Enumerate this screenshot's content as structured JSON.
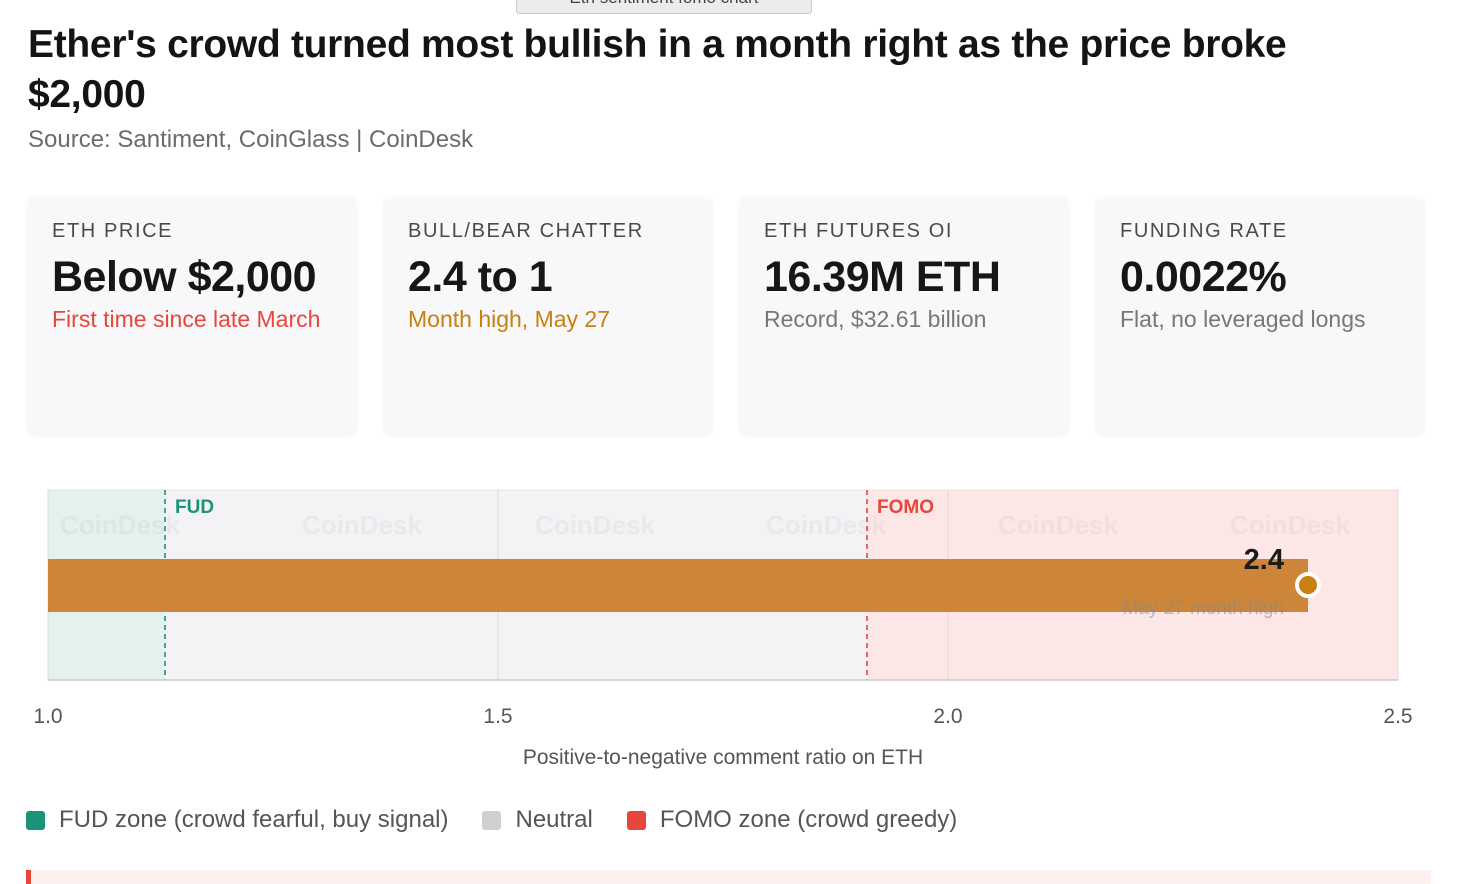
{
  "overlay_tab": "Eth sentiment fomo chart",
  "title": "Ether's crowd turned most bullish in a month right as the price broke $2,000",
  "subtitle": "Source: Santiment, CoinGlass | CoinDesk",
  "cards": [
    {
      "label": "ETH PRICE",
      "value": "Below $2,000",
      "note": "First time since late March",
      "note_color": "#e8463c"
    },
    {
      "label": "BULL/BEAR CHATTER",
      "value": "2.4 to 1",
      "note": "Month high, May 27",
      "note_color": "#c8810f"
    },
    {
      "label": "ETH FUTURES OI",
      "value": "16.39M ETH",
      "note": "Record, $32.61 billion",
      "note_color": "#777777"
    },
    {
      "label": "FUNDING RATE",
      "value": "0.0022%",
      "note": "Flat, no leveraged longs",
      "note_color": "#777777"
    }
  ],
  "chart_data": {
    "type": "bar",
    "orientation": "horizontal",
    "xlabel": "Positive-to-negative comment ratio on ETH",
    "xlim": [
      1.0,
      2.5
    ],
    "xticks": [
      "1.0",
      "1.5",
      "2.0",
      "2.5"
    ],
    "grid": true,
    "watermark": "CoinDesk",
    "zones": [
      {
        "name": "FUD",
        "from": 1.0,
        "to": 1.13,
        "color": "#1a9479"
      },
      {
        "name": "Neutral",
        "from": 1.13,
        "to": 1.91,
        "color": "#cfcfcf"
      },
      {
        "name": "FOMO",
        "from": 1.91,
        "to": 2.5,
        "color": "#e8463c"
      }
    ],
    "thresholds": [
      {
        "label": "FUD",
        "value": 1.13,
        "color": "#1a9479"
      },
      {
        "label": "FOMO",
        "value": 1.91,
        "color": "#e8463c"
      }
    ],
    "bar": {
      "value": 2.4,
      "value_label": "2.4",
      "annotation": "May 27 month high",
      "color": "#cd853a",
      "marker_color": "#c8810f"
    }
  },
  "legend": [
    {
      "label": "FUD zone (crowd fearful, buy signal)",
      "color": "#1a9479"
    },
    {
      "label": "Neutral",
      "color": "#cfcfcf"
    },
    {
      "label": "FOMO zone (crowd greedy)",
      "color": "#e8463c"
    }
  ]
}
